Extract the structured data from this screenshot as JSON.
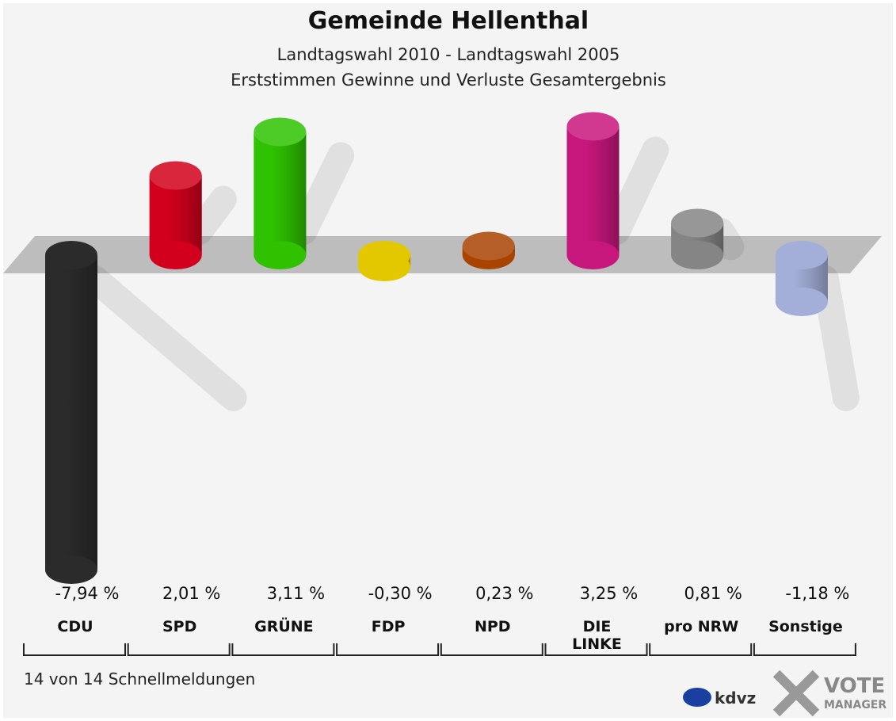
{
  "chart_data": {
    "type": "bar",
    "title": "Gemeinde Hellenthal",
    "subtitle": "Landtagswahl 2010 - Landtagswahl 2005",
    "subtitle2": "Erststimmen Gewinne und Verluste Gesamtergebnis",
    "categories": [
      "CDU",
      "SPD",
      "GRÜNE",
      "FDP",
      "NPD",
      "DIE LINKE",
      "pro NRW",
      "Sonstige"
    ],
    "values": [
      -7.94,
      2.01,
      3.11,
      -0.3,
      0.23,
      3.25,
      0.81,
      -1.18
    ],
    "value_labels": [
      "-7,94 %",
      "2,01 %",
      "3,11 %",
      "-0,30 %",
      "0,23 %",
      "3,25 %",
      "0,81 %",
      "-1,18 %"
    ],
    "colors": [
      "#2b2b2b",
      "#d2001c",
      "#2ec200",
      "#e3c800",
      "#a84300",
      "#c8177c",
      "#858585",
      "#a3afd9"
    ],
    "footnote": "14 von 14 Schnellmeldungen",
    "logo1": "kdvz",
    "logo2": "VOTE",
    "logo3": "MANAGER"
  }
}
